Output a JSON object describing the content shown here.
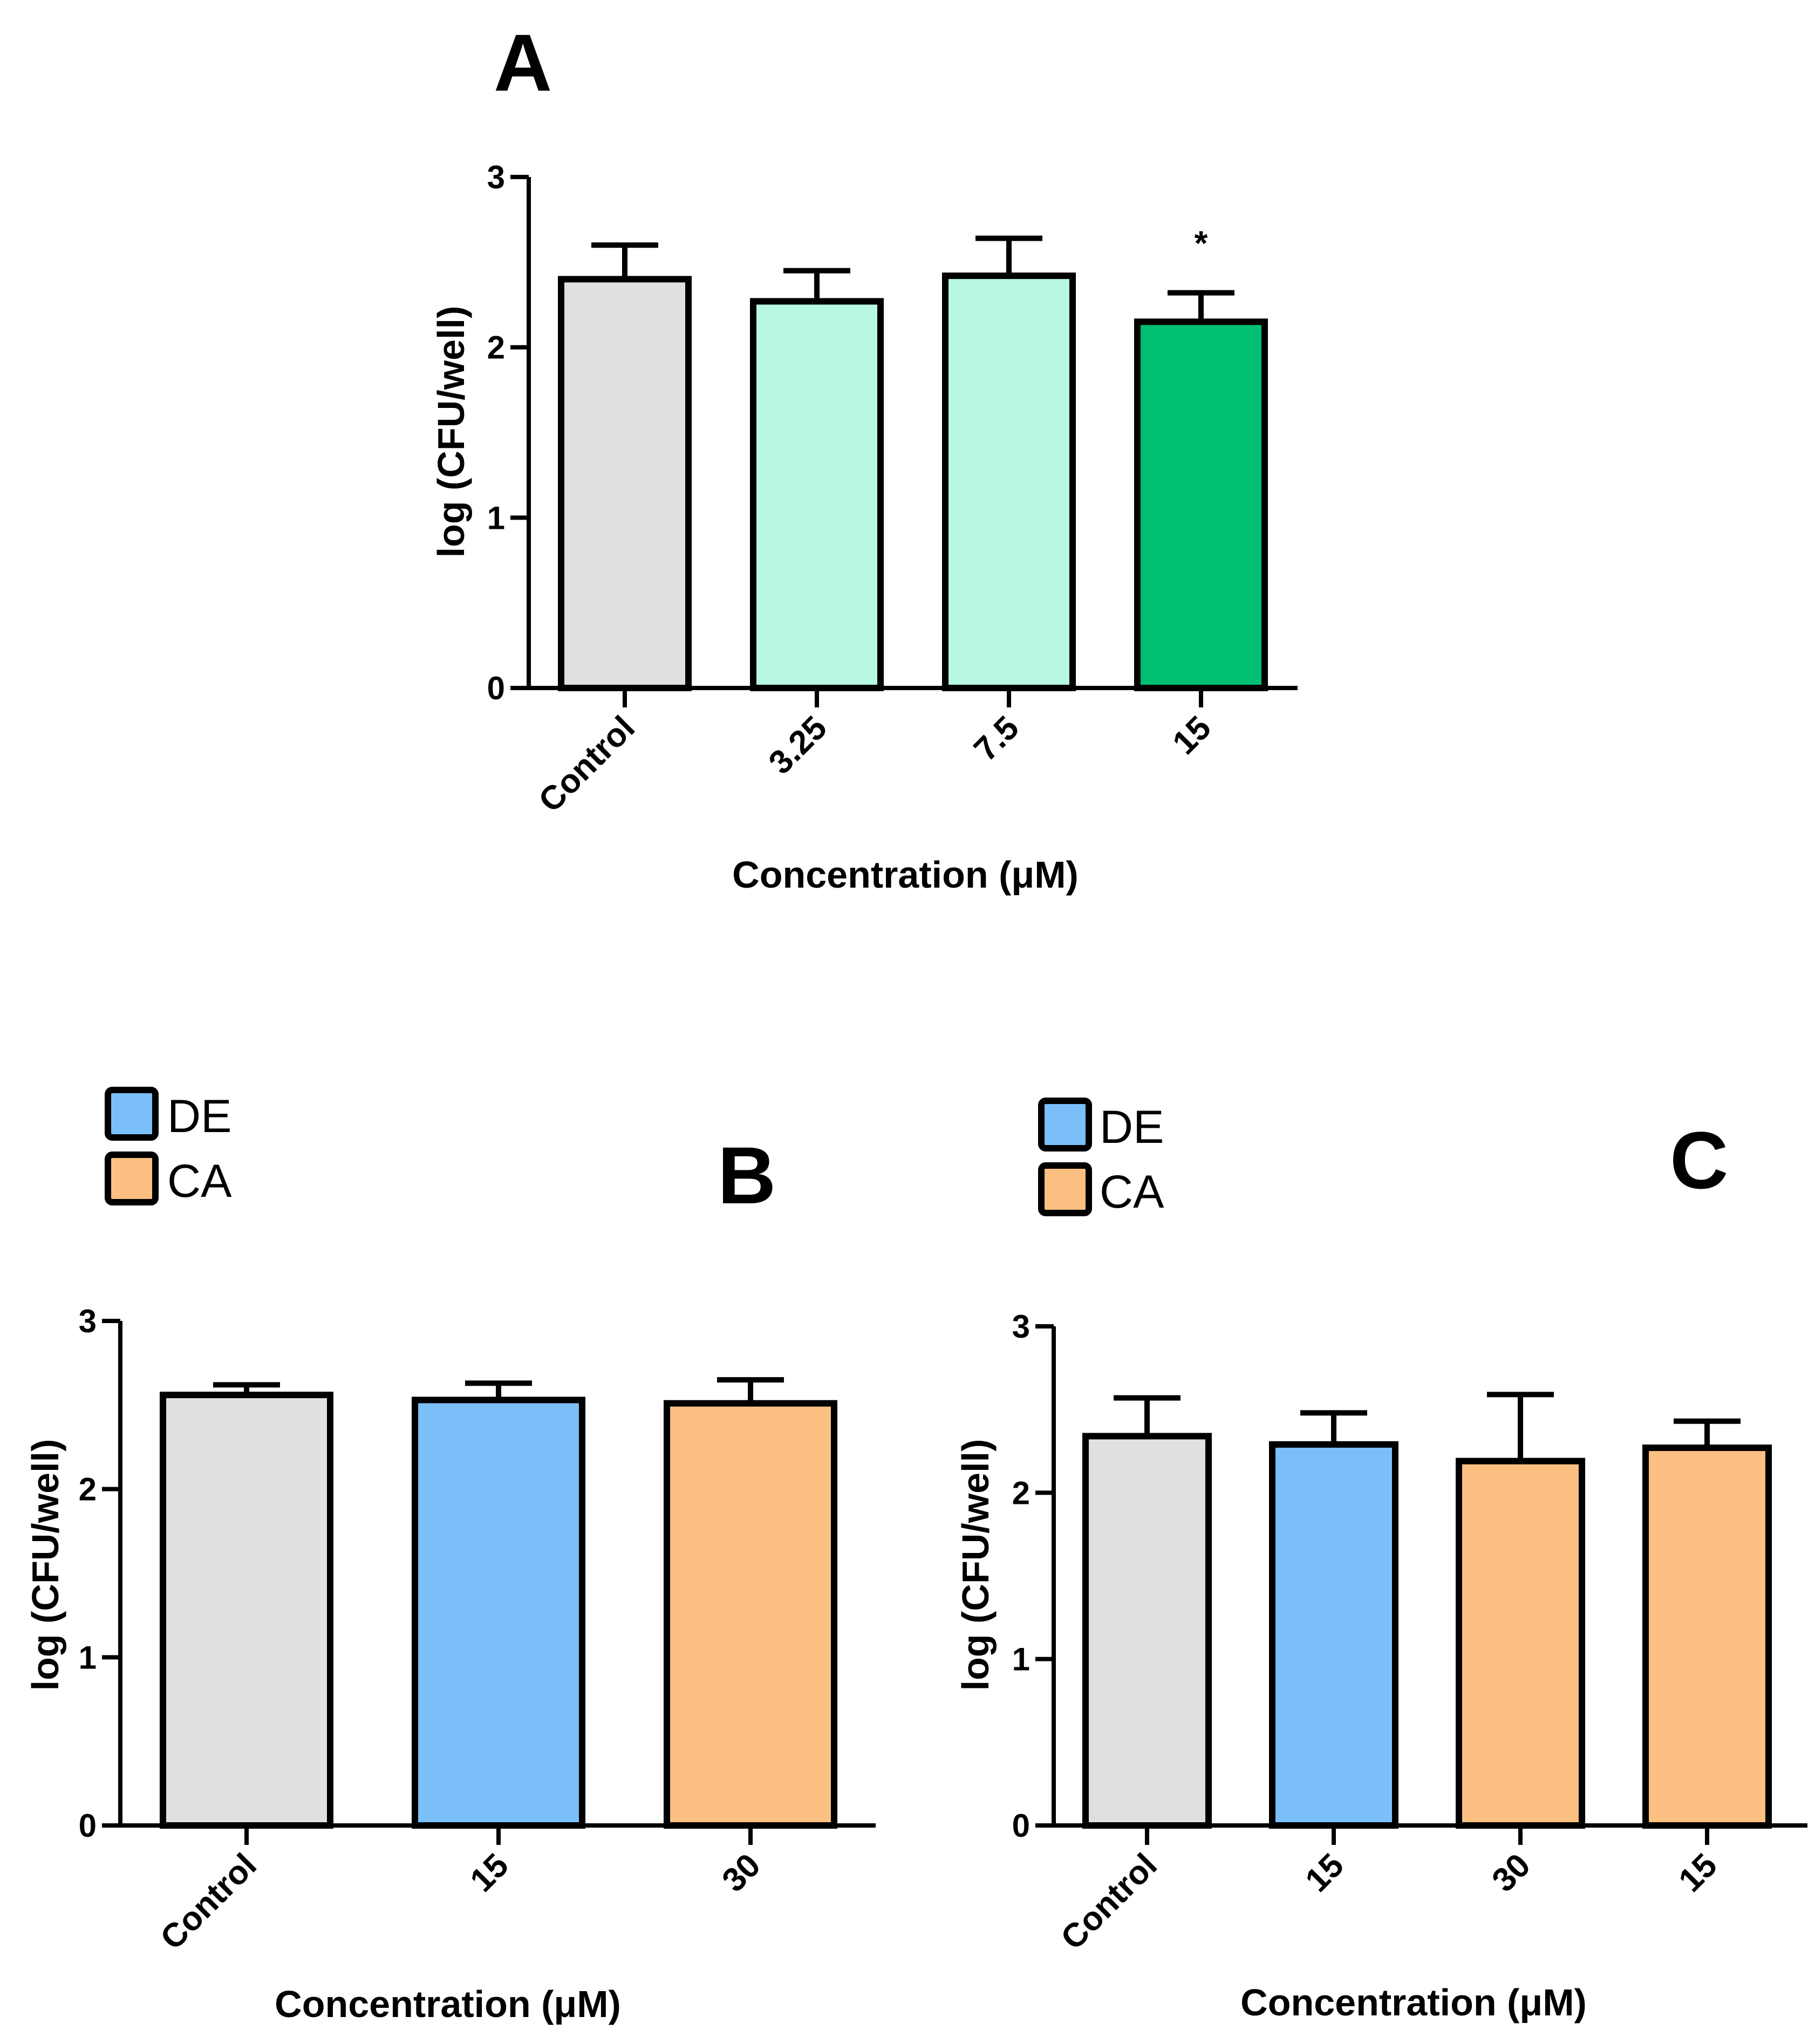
{
  "colors": {
    "control": "#e0e0e0",
    "low_conc": "#b7f7e4",
    "high_conc": "#00bf72",
    "DE": "#7bbff9",
    "CA": "#fcc182",
    "stroke": "#000000"
  },
  "chart_data": [
    {
      "id": "A",
      "panel_label": "A",
      "type": "bar",
      "title": "",
      "xlabel": "Concentration (μM)",
      "ylabel": "log (CFU/well)",
      "ylim": [
        0,
        3
      ],
      "yticks": [
        "0",
        "1",
        "2",
        "3"
      ],
      "categories": [
        "Control",
        "3.25",
        "7.5",
        "15"
      ],
      "values": [
        2.4,
        2.27,
        2.42,
        2.15
      ],
      "errors": [
        0.2,
        0.18,
        0.22,
        0.17
      ],
      "bar_colors": [
        "control",
        "low_conc",
        "low_conc",
        "high_conc"
      ],
      "annotations": [
        "",
        "",
        "",
        "*"
      ],
      "legend": []
    },
    {
      "id": "B",
      "panel_label": "B",
      "type": "bar",
      "title": "",
      "xlabel": "Concentration (μM)",
      "ylabel": "log (CFU/well)",
      "ylim": [
        0,
        3
      ],
      "yticks": [
        "0",
        "1",
        "2",
        "3"
      ],
      "categories": [
        "Control",
        "15",
        "30"
      ],
      "values": [
        2.56,
        2.53,
        2.51
      ],
      "errors": [
        0.06,
        0.1,
        0.14
      ],
      "bar_colors": [
        "control",
        "DE",
        "CA"
      ],
      "annotations": [
        "",
        "",
        ""
      ],
      "legend": [
        {
          "label": "DE",
          "color": "DE"
        },
        {
          "label": "CA",
          "color": "CA"
        }
      ]
    },
    {
      "id": "C",
      "panel_label": "C",
      "type": "bar",
      "title": "",
      "xlabel": "Concentration (μM)",
      "ylabel": "log (CFU/well)",
      "ylim": [
        0,
        3
      ],
      "yticks": [
        "0",
        "1",
        "2",
        "3"
      ],
      "categories": [
        "Control",
        "15",
        "30",
        "15"
      ],
      "values": [
        2.34,
        2.29,
        2.19,
        2.27
      ],
      "errors": [
        0.23,
        0.19,
        0.4,
        0.16
      ],
      "bar_colors": [
        "control",
        "DE",
        "CA",
        "CA"
      ],
      "annotations": [
        "",
        "",
        "",
        ""
      ],
      "legend": [
        {
          "label": "DE",
          "color": "DE"
        },
        {
          "label": "CA",
          "color": "CA"
        }
      ]
    }
  ]
}
